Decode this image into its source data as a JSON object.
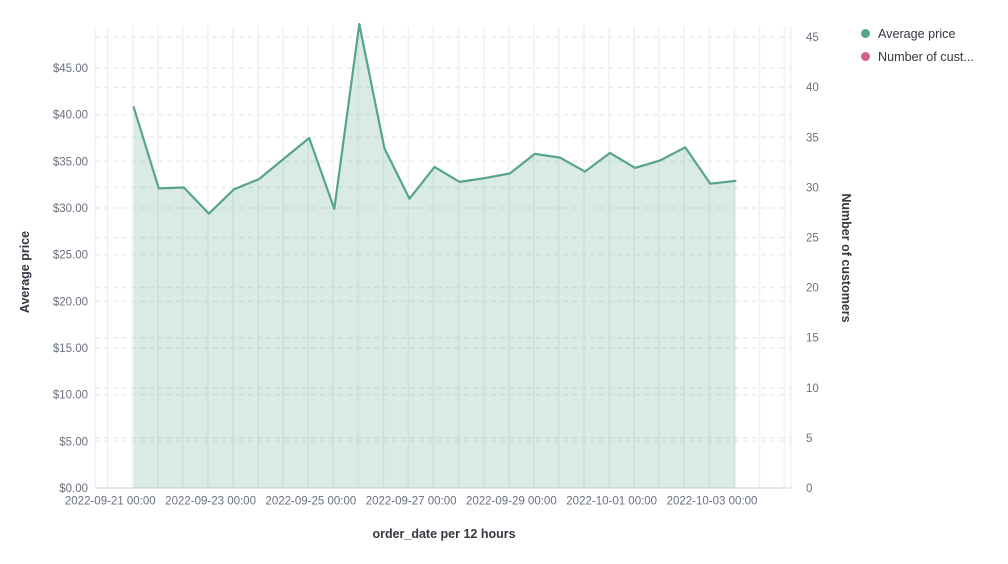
{
  "chart_data": {
    "type": "area",
    "title": "",
    "xlabel": "order_date per 12 hours",
    "ylabel_left": "Average price",
    "ylabel_right": "Number of customers",
    "grid": true,
    "legend_position": "top-right",
    "x_tick_labels": [
      "2022-09-21 00:00",
      "2022-09-23 00:00",
      "2022-09-25 00:00",
      "2022-09-27 00:00",
      "2022-09-29 00:00",
      "2022-10-01 00:00",
      "2022-10-03 00:00"
    ],
    "y_axis_left": {
      "range": [
        0,
        50
      ],
      "tick_values": [
        0,
        5,
        10,
        15,
        20,
        25,
        30,
        35,
        40,
        45
      ],
      "tick_labels": [
        "$0.00",
        "$5.00",
        "$10.00",
        "$15.00",
        "$20.00",
        "$25.00",
        "$30.00",
        "$35.00",
        "$40.00",
        "$45.00"
      ]
    },
    "y_axis_right": {
      "range": [
        0,
        46.5
      ],
      "tick_values": [
        0,
        5,
        10,
        15,
        20,
        25,
        30,
        35,
        40,
        45
      ],
      "tick_labels": [
        "0",
        "5",
        "10",
        "15",
        "20",
        "25",
        "30",
        "35",
        "40",
        "45"
      ]
    },
    "series": [
      {
        "name": "Average price",
        "type": "area",
        "axis": "left",
        "color": "#57a48d",
        "fill_opacity": 0.22,
        "x": [
          "2022-09-21 12:00",
          "2022-09-22 00:00",
          "2022-09-22 12:00",
          "2022-09-23 00:00",
          "2022-09-23 12:00",
          "2022-09-24 00:00",
          "2022-09-24 12:00",
          "2022-09-25 00:00",
          "2022-09-25 12:00",
          "2022-09-26 00:00",
          "2022-09-26 12:00",
          "2022-09-27 00:00",
          "2022-09-27 12:00",
          "2022-09-28 00:00",
          "2022-09-28 12:00",
          "2022-09-29 00:00",
          "2022-09-29 12:00",
          "2022-09-30 00:00",
          "2022-09-30 12:00",
          "2022-10-01 00:00",
          "2022-10-01 12:00",
          "2022-10-02 00:00",
          "2022-10-02 12:00",
          "2022-10-03 00:00",
          "2022-10-03 12:00"
        ],
        "values": [
          40.8,
          32.1,
          32.2,
          29.4,
          32.0,
          33.1,
          35.3,
          37.5,
          29.9,
          49.7,
          36.4,
          31.0,
          34.4,
          32.8,
          33.2,
          33.7,
          35.8,
          35.4,
          33.9,
          35.9,
          34.3,
          35.1,
          36.5,
          32.6,
          32.9
        ]
      },
      {
        "name": "Number of customers",
        "type": "line",
        "axis": "right",
        "color": "#d36086",
        "x": [],
        "values": []
      }
    ]
  },
  "legend": {
    "items": [
      {
        "label": "Average price",
        "color": "#57a48d"
      },
      {
        "label": "Number of cust...",
        "color": "#d36086"
      }
    ]
  },
  "colors": {
    "grid_vertical": "#f0f2f5",
    "grid_dashed": "#e9ebf0",
    "baseline": "#dde2e9",
    "tick_text": "#69707d",
    "axis_title_text": "#343741"
  }
}
